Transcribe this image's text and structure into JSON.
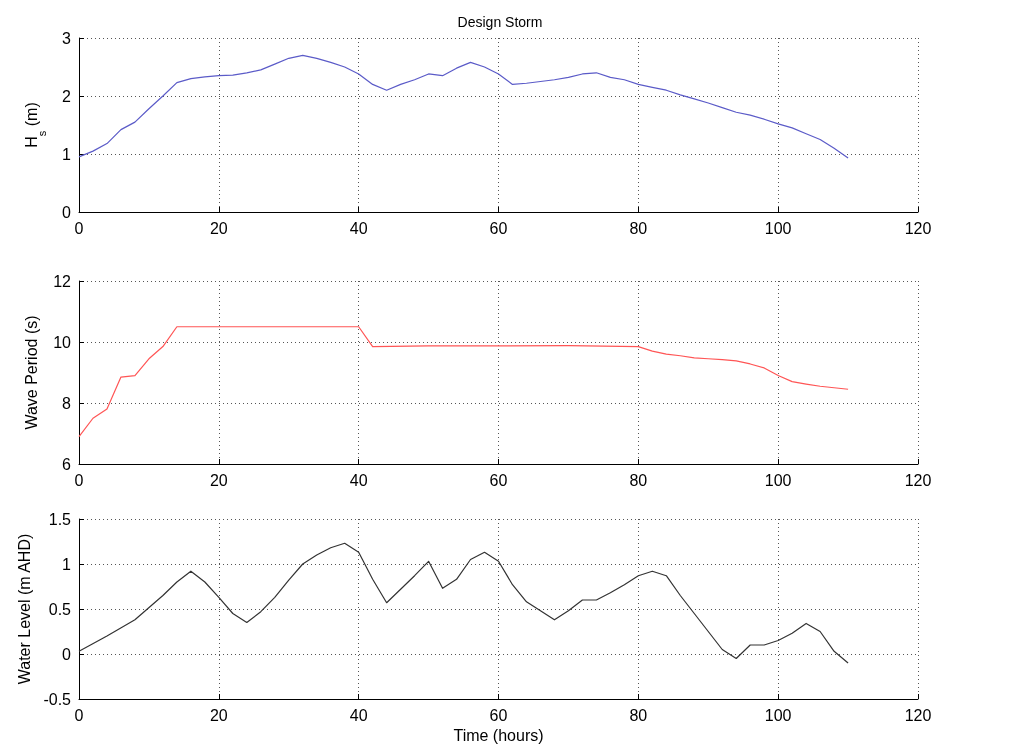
{
  "chart_data": [
    {
      "type": "line",
      "title": "Design Storm",
      "ylabel": "H$_{s}$ (m)",
      "xlim": [
        0,
        120
      ],
      "xticks": [
        0,
        20,
        40,
        60,
        80,
        100,
        120
      ],
      "ylim": [
        0,
        3
      ],
      "yticks": [
        0,
        1,
        2,
        3
      ],
      "grid": true,
      "marker": "none",
      "line_style": "solid",
      "x": [
        0,
        2,
        4,
        6,
        8,
        10,
        12,
        14,
        16,
        18,
        20,
        22,
        24,
        26,
        28,
        30,
        32,
        34,
        36,
        38,
        40,
        42,
        44,
        46,
        48,
        50,
        52,
        54,
        56,
        58,
        60,
        62,
        64,
        66,
        68,
        70,
        72,
        74,
        76,
        78,
        80,
        82,
        84,
        86,
        88,
        90,
        92,
        94,
        96,
        98,
        100,
        102,
        104,
        106,
        108,
        110
      ],
      "series": [
        {
          "color": "#5b5bc8",
          "values": [
            0.95,
            1.05,
            1.18,
            1.42,
            1.55,
            1.78,
            2.0,
            2.23,
            2.3,
            2.33,
            2.35,
            2.36,
            2.4,
            2.45,
            2.55,
            2.65,
            2.7,
            2.65,
            2.58,
            2.5,
            2.38,
            2.2,
            2.1,
            2.2,
            2.28,
            2.38,
            2.35,
            2.48,
            2.58,
            2.5,
            2.38,
            2.2,
            2.22,
            2.25,
            2.28,
            2.32,
            2.38,
            2.4,
            2.32,
            2.28,
            2.2,
            2.15,
            2.1,
            2.02,
            1.95,
            1.88,
            1.8,
            1.72,
            1.67,
            1.6,
            1.52,
            1.45,
            1.35,
            1.25,
            1.1,
            0.93
          ]
        }
      ]
    },
    {
      "type": "line",
      "ylabel": "Wave Period (s)",
      "xlim": [
        0,
        120
      ],
      "xticks": [
        0,
        20,
        40,
        60,
        80,
        100,
        120
      ],
      "ylim": [
        6,
        12
      ],
      "yticks": [
        6,
        8,
        10,
        12
      ],
      "grid": true,
      "marker": "none",
      "line_style": "solid",
      "x": [
        0,
        2,
        4,
        6,
        8,
        10,
        12,
        14,
        40,
        42,
        50,
        60,
        70,
        80,
        82,
        84,
        86,
        88,
        90,
        92,
        94,
        96,
        98,
        100,
        102,
        104,
        106,
        108,
        110
      ],
      "series": [
        {
          "color": "#ff5555",
          "values": [
            6.9,
            7.5,
            7.8,
            8.85,
            8.9,
            9.45,
            9.85,
            10.5,
            10.5,
            9.85,
            9.87,
            9.87,
            9.88,
            9.85,
            9.7,
            9.6,
            9.55,
            9.48,
            9.45,
            9.42,
            9.38,
            9.28,
            9.15,
            8.9,
            8.7,
            8.62,
            8.55,
            8.5,
            8.45
          ]
        }
      ]
    },
    {
      "type": "line",
      "xlabel": "Time (hours)",
      "ylabel": "Water Level (m AHD)",
      "xlim": [
        0,
        120
      ],
      "xticks": [
        0,
        20,
        40,
        60,
        80,
        100,
        120
      ],
      "ylim": [
        -0.5,
        1.5
      ],
      "yticks": [
        -0.5,
        0,
        0.5,
        1,
        1.5
      ],
      "grid": true,
      "marker": "none",
      "line_style": "solid",
      "x": [
        0,
        4,
        8,
        12,
        14,
        16,
        18,
        20,
        22,
        24,
        26,
        28,
        30,
        32,
        34,
        36,
        38,
        40,
        42,
        44,
        46,
        48,
        50,
        52,
        54,
        56,
        58,
        60,
        62,
        64,
        66,
        68,
        70,
        72,
        74,
        76,
        78,
        80,
        82,
        84,
        86,
        88,
        90,
        92,
        94,
        96,
        98,
        100,
        102,
        104,
        106,
        108,
        110
      ],
      "series": [
        {
          "color": "#333333",
          "values": [
            0.03,
            0.2,
            0.38,
            0.65,
            0.8,
            0.92,
            0.8,
            0.63,
            0.45,
            0.35,
            0.47,
            0.63,
            0.82,
            1.0,
            1.1,
            1.18,
            1.23,
            1.13,
            0.83,
            0.57,
            0.72,
            0.87,
            1.03,
            0.73,
            0.83,
            1.05,
            1.13,
            1.03,
            0.77,
            0.58,
            0.48,
            0.38,
            0.48,
            0.6,
            0.6,
            0.68,
            0.77,
            0.87,
            0.92,
            0.87,
            0.65,
            0.45,
            0.25,
            0.05,
            -0.05,
            0.1,
            0.1,
            0.15,
            0.23,
            0.34,
            0.25,
            0.03,
            -0.1
          ]
        }
      ]
    }
  ]
}
